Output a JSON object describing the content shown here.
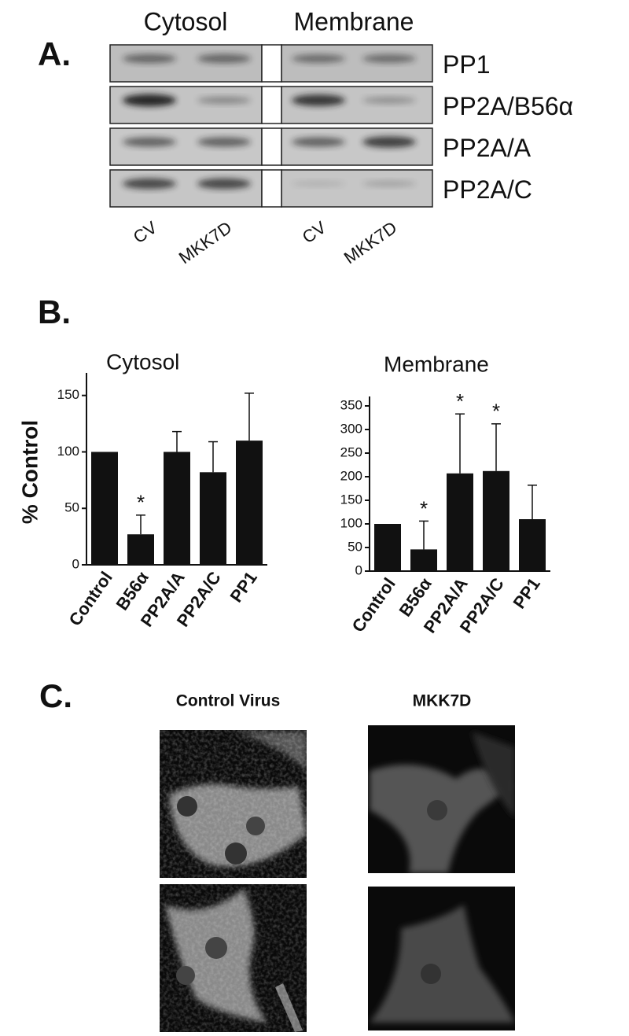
{
  "panel_a": {
    "label": "A.",
    "columns": [
      "Cytosol",
      "Membrane"
    ],
    "rows": [
      "PP1",
      "PP2A/B56α",
      "PP2A/A",
      "PP2A/C"
    ],
    "lanes": [
      "CV",
      "MKK7D",
      "CV",
      "MKK7D"
    ]
  },
  "panel_b": {
    "label": "B.",
    "ylabel": "% Control"
  },
  "chart_data": [
    {
      "type": "bar",
      "title": "Cytosol",
      "categories": [
        "Control",
        "B56α",
        "PP2A/A",
        "PP2A/C",
        "PP1"
      ],
      "values": [
        100,
        27,
        100,
        82,
        110
      ],
      "errors": [
        null,
        17,
        18,
        27,
        42
      ],
      "significance": [
        null,
        "*",
        null,
        null,
        null
      ],
      "color": "#111111",
      "ylim": [
        0,
        170
      ],
      "yticks": [
        0,
        50,
        100,
        150
      ]
    },
    {
      "type": "bar",
      "title": "Membrane",
      "categories": [
        "Control",
        "B56α",
        "PP2A/A",
        "PP2A/C",
        "PP1"
      ],
      "values": [
        100,
        46,
        207,
        212,
        110
      ],
      "errors": [
        null,
        60,
        126,
        100,
        72
      ],
      "significance": [
        null,
        "*",
        "*",
        "*",
        null
      ],
      "color": "#111111",
      "ylim": [
        0,
        370
      ],
      "yticks": [
        0,
        50,
        100,
        150,
        200,
        250,
        300,
        350
      ]
    }
  ],
  "panel_c": {
    "label": "C.",
    "columns": [
      "Control Virus",
      "MKK7D"
    ]
  }
}
